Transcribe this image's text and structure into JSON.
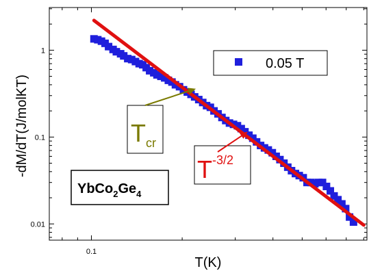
{
  "chart_data": {
    "type": "scatter",
    "xlabel": "T(K)",
    "ylabel": "-dM/dT(J/molKT)",
    "xscale": "log",
    "yscale": "log",
    "xlim": [
      0.0725,
      0.82
    ],
    "ylim": [
      0.0065,
      3.1
    ],
    "x_tick_labels": [
      {
        "value": 0.1,
        "label": "0.1"
      }
    ],
    "y_tick_labels": [
      {
        "value": 1,
        "label": "1"
      },
      {
        "value": 0.1,
        "label": "0.1"
      },
      {
        "value": 0.01,
        "label": "0.01"
      }
    ],
    "grid": false,
    "legend": {
      "position": "top-right",
      "entries": [
        {
          "label": "0.05 T",
          "color": "#1f1fdc",
          "marker": "square"
        }
      ]
    },
    "series": [
      {
        "name": "0.05 T",
        "color": "#1f1fdc",
        "marker": "square",
        "x": [
          0.102,
          0.105,
          0.108,
          0.111,
          0.114,
          0.118,
          0.121,
          0.125,
          0.128,
          0.132,
          0.136,
          0.14,
          0.144,
          0.148,
          0.152,
          0.156,
          0.161,
          0.165,
          0.17,
          0.175,
          0.18,
          0.185,
          0.19,
          0.196,
          0.202,
          0.208,
          0.214,
          0.22,
          0.227,
          0.234,
          0.241,
          0.248,
          0.255,
          0.263,
          0.271,
          0.279,
          0.287,
          0.296,
          0.305,
          0.314,
          0.323,
          0.333,
          0.343,
          0.353,
          0.364,
          0.375,
          0.386,
          0.398,
          0.41,
          0.422,
          0.435,
          0.448,
          0.461,
          0.475,
          0.489,
          0.504,
          0.519,
          0.535,
          0.551,
          0.567,
          0.584,
          0.602,
          0.62,
          0.638,
          0.657,
          0.677,
          0.697,
          0.718,
          0.74
        ],
        "y": [
          1.35,
          1.32,
          1.27,
          1.2,
          1.1,
          1.02,
          0.96,
          0.91,
          0.86,
          0.8,
          0.78,
          0.74,
          0.7,
          0.68,
          0.63,
          0.58,
          0.55,
          0.52,
          0.5,
          0.48,
          0.45,
          0.43,
          0.4,
          0.38,
          0.35,
          0.33,
          0.31,
          0.29,
          0.27,
          0.25,
          0.23,
          0.22,
          0.2,
          0.185,
          0.168,
          0.155,
          0.145,
          0.14,
          0.135,
          0.125,
          0.115,
          0.105,
          0.097,
          0.088,
          0.08,
          0.075,
          0.071,
          0.066,
          0.06,
          0.055,
          0.05,
          0.045,
          0.041,
          0.038,
          0.036,
          0.034,
          0.03,
          0.03,
          0.029,
          0.03,
          0.03,
          0.027,
          0.024,
          0.021,
          0.019,
          0.017,
          0.015,
          0.012,
          0.0105
        ]
      },
      {
        "name": "T-3/2",
        "type": "line",
        "color": "#e01010",
        "x": [
          0.102,
          0.8
        ],
        "y": [
          2.2,
          0.0097
        ]
      }
    ],
    "annotations": [
      {
        "text_main": "T",
        "text_sub": "cr",
        "color": "#7a7a00",
        "arrow_to": {
          "x": 0.222,
          "y": 0.36
        }
      },
      {
        "text_main": "T",
        "text_sup": "-3/2",
        "color": "#e01010",
        "arrow_to": {
          "x": 0.33,
          "y": 0.115
        }
      }
    ],
    "compound": {
      "parts": [
        "YbCo",
        "2",
        "Ge",
        "4"
      ]
    }
  }
}
